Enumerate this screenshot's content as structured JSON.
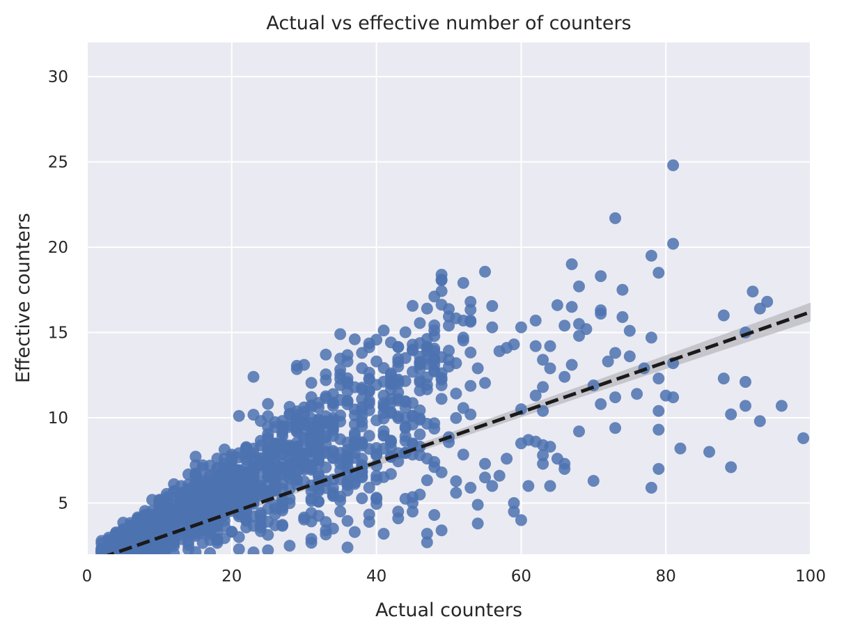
{
  "chart_data": {
    "type": "scatter",
    "title": "Actual vs effective number of counters",
    "xlabel": "Actual counters",
    "ylabel": "Effective counters",
    "xlim": [
      0,
      100
    ],
    "ylim": [
      2,
      32
    ],
    "xticks": [
      0,
      20,
      40,
      60,
      80,
      100
    ],
    "yticks": [
      5,
      10,
      15,
      20,
      25,
      30
    ],
    "grid": true,
    "colors": {
      "points": "#4c72b0",
      "regression_line": "#1a1a1a",
      "confidence_band": "#b8b8be",
      "plot_background": "#eaeaf2",
      "grid": "#ffffff"
    },
    "regression": {
      "style": "dashed",
      "x": [
        2,
        100
      ],
      "y": [
        1.8,
        16.2
      ],
      "ci_halfwidth_at_ends": [
        0.15,
        0.55
      ]
    },
    "points_outliers": [
      {
        "x": 81,
        "y": 24.8
      },
      {
        "x": 73,
        "y": 21.7
      },
      {
        "x": 81,
        "y": 20.2
      },
      {
        "x": 78,
        "y": 19.5
      },
      {
        "x": 79,
        "y": 18.5
      },
      {
        "x": 67,
        "y": 19.0
      },
      {
        "x": 71,
        "y": 18.3
      },
      {
        "x": 68,
        "y": 17.7
      },
      {
        "x": 74,
        "y": 17.5
      },
      {
        "x": 92,
        "y": 17.4
      },
      {
        "x": 94,
        "y": 16.8
      },
      {
        "x": 65,
        "y": 16.6
      },
      {
        "x": 67,
        "y": 16.5
      },
      {
        "x": 93,
        "y": 16.4
      },
      {
        "x": 47,
        "y": 16.4
      },
      {
        "x": 71,
        "y": 16.3
      },
      {
        "x": 71,
        "y": 16.1
      },
      {
        "x": 88,
        "y": 16.0
      },
      {
        "x": 74,
        "y": 15.9
      },
      {
        "x": 52,
        "y": 15.7
      },
      {
        "x": 53,
        "y": 15.7
      },
      {
        "x": 62,
        "y": 15.7
      },
      {
        "x": 66,
        "y": 15.4
      },
      {
        "x": 50,
        "y": 15.4
      },
      {
        "x": 56,
        "y": 15.3
      },
      {
        "x": 60,
        "y": 15.3
      },
      {
        "x": 68,
        "y": 15.5
      },
      {
        "x": 69,
        "y": 15.2
      },
      {
        "x": 75,
        "y": 15.1
      },
      {
        "x": 91,
        "y": 15.0
      },
      {
        "x": 35,
        "y": 14.9
      },
      {
        "x": 78,
        "y": 14.7
      },
      {
        "x": 37,
        "y": 14.6
      },
      {
        "x": 68,
        "y": 14.8
      },
      {
        "x": 52,
        "y": 14.7
      },
      {
        "x": 64,
        "y": 14.2
      },
      {
        "x": 73,
        "y": 13.8
      },
      {
        "x": 75,
        "y": 13.6
      },
      {
        "x": 72,
        "y": 13.3
      },
      {
        "x": 81,
        "y": 13.2
      },
      {
        "x": 67,
        "y": 13.1
      },
      {
        "x": 30,
        "y": 13.1
      },
      {
        "x": 77,
        "y": 12.9
      },
      {
        "x": 79,
        "y": 12.3
      },
      {
        "x": 88,
        "y": 12.3
      },
      {
        "x": 23,
        "y": 12.4
      },
      {
        "x": 91,
        "y": 12.1
      },
      {
        "x": 70,
        "y": 11.9
      },
      {
        "x": 81,
        "y": 11.2
      },
      {
        "x": 73,
        "y": 11.2
      },
      {
        "x": 76,
        "y": 11.4
      },
      {
        "x": 80,
        "y": 11.3
      },
      {
        "x": 71,
        "y": 10.8
      },
      {
        "x": 91,
        "y": 10.7
      },
      {
        "x": 96,
        "y": 10.7
      },
      {
        "x": 79,
        "y": 10.4
      },
      {
        "x": 89,
        "y": 10.2
      },
      {
        "x": 93,
        "y": 9.8
      },
      {
        "x": 73,
        "y": 9.4
      },
      {
        "x": 79,
        "y": 9.3
      },
      {
        "x": 68,
        "y": 9.2
      },
      {
        "x": 99,
        "y": 8.8
      },
      {
        "x": 82,
        "y": 8.2
      },
      {
        "x": 86,
        "y": 8.0
      },
      {
        "x": 89,
        "y": 7.1
      },
      {
        "x": 79,
        "y": 7.0
      },
      {
        "x": 70,
        "y": 6.3
      },
      {
        "x": 78,
        "y": 5.9
      },
      {
        "x": 66,
        "y": 7.3
      },
      {
        "x": 65,
        "y": 7.6
      },
      {
        "x": 64,
        "y": 6.0
      },
      {
        "x": 61,
        "y": 6.0
      },
      {
        "x": 60,
        "y": 4.0
      },
      {
        "x": 59,
        "y": 4.5
      },
      {
        "x": 59,
        "y": 5.0
      },
      {
        "x": 54,
        "y": 3.8
      },
      {
        "x": 47,
        "y": 2.7
      },
      {
        "x": 36,
        "y": 2.4
      },
      {
        "x": 47,
        "y": 3.2
      },
      {
        "x": 41,
        "y": 3.2
      },
      {
        "x": 49,
        "y": 3.4
      },
      {
        "x": 43,
        "y": 4.1
      },
      {
        "x": 48,
        "y": 4.3
      },
      {
        "x": 54,
        "y": 4.9
      },
      {
        "x": 37,
        "y": 3.3
      },
      {
        "x": 63,
        "y": 13.4
      },
      {
        "x": 62,
        "y": 14.2
      },
      {
        "x": 58,
        "y": 14.1
      },
      {
        "x": 59,
        "y": 14.3
      },
      {
        "x": 57,
        "y": 13.9
      },
      {
        "x": 45,
        "y": 14.0
      },
      {
        "x": 47,
        "y": 13.9
      },
      {
        "x": 44,
        "y": 13.5
      },
      {
        "x": 40,
        "y": 13.3
      },
      {
        "x": 43,
        "y": 13.0
      },
      {
        "x": 38,
        "y": 13.8
      },
      {
        "x": 36,
        "y": 13.3
      },
      {
        "x": 54,
        "y": 12.9
      },
      {
        "x": 50,
        "y": 13.0
      },
      {
        "x": 51,
        "y": 13.2
      },
      {
        "x": 63,
        "y": 11.8
      },
      {
        "x": 66,
        "y": 12.4
      },
      {
        "x": 64,
        "y": 12.9
      },
      {
        "x": 62,
        "y": 11.3
      },
      {
        "x": 60,
        "y": 10.5
      },
      {
        "x": 63,
        "y": 10.4
      },
      {
        "x": 61,
        "y": 8.7
      },
      {
        "x": 63,
        "y": 8.4
      },
      {
        "x": 62,
        "y": 8.6
      },
      {
        "x": 64,
        "y": 8.3
      },
      {
        "x": 60,
        "y": 8.5
      },
      {
        "x": 63,
        "y": 7.8
      },
      {
        "x": 63,
        "y": 7.3
      },
      {
        "x": 66,
        "y": 7.0
      },
      {
        "x": 58,
        "y": 7.6
      },
      {
        "x": 56,
        "y": 6.0
      },
      {
        "x": 57,
        "y": 6.6
      },
      {
        "x": 55,
        "y": 6.5
      },
      {
        "x": 55,
        "y": 7.3
      },
      {
        "x": 53,
        "y": 5.9
      },
      {
        "x": 51,
        "y": 5.6
      },
      {
        "x": 49,
        "y": 6.8
      },
      {
        "x": 45,
        "y": 4.5
      },
      {
        "x": 45,
        "y": 5.0
      },
      {
        "x": 46,
        "y": 5.5
      },
      {
        "x": 33,
        "y": 3.4
      },
      {
        "x": 31,
        "y": 2.9
      },
      {
        "x": 28,
        "y": 2.5
      },
      {
        "x": 39,
        "y": 3.9
      }
    ],
    "dense_cloud": {
      "x_range": [
        2,
        58
      ],
      "y_at_x_lower": 0.12,
      "y_at_x_upper": 0.29,
      "approx_count": 1400
    }
  }
}
